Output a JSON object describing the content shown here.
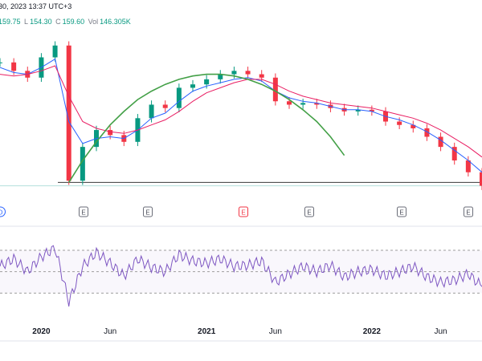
{
  "header": {
    "datetime_text": "30, 2023 13:37 UTC+3",
    "ohlc": [
      {
        "label": "",
        "value": "159.75"
      },
      {
        "label": "L",
        "value": "154.30"
      },
      {
        "label": "C",
        "value": "159.60"
      },
      {
        "label": "Vol",
        "value": "146.305K"
      }
    ]
  },
  "colors": {
    "up": "#089981",
    "down": "#f23645",
    "ma_fast": "#2962ff",
    "ma_slow": "#e91e63",
    "arc": "#43a047",
    "rsi": "#7e57c2",
    "support": "#3a3a3a"
  },
  "events": {
    "markers": [
      "D",
      "E",
      "E",
      "E",
      "E",
      "E",
      "E"
    ],
    "highlighted_index": 3
  },
  "chart_data": [
    {
      "type": "line",
      "name_hint": "price-panel",
      "title": "",
      "x": [
        "2019-10",
        "2019-11",
        "2019-12",
        "2020-01",
        "2020-02",
        "2020-03",
        "2020-04",
        "2020-05",
        "2020-06",
        "2020-07",
        "2020-08",
        "2020-09",
        "2020-10",
        "2020-11",
        "2020-12",
        "2021-01",
        "2021-02",
        "2021-03",
        "2021-04",
        "2021-05",
        "2021-06",
        "2021-07",
        "2021-08",
        "2021-09",
        "2021-10",
        "2021-11",
        "2021-12",
        "2022-01",
        "2022-02",
        "2022-03",
        "2022-04",
        "2022-05",
        "2022-06",
        "2022-07",
        "2022-08",
        "2022-09"
      ],
      "series": [
        {
          "kind": "close",
          "values": [
            195,
            190,
            186,
            198,
            205,
            125,
            145,
            155,
            152,
            148,
            162,
            170,
            168,
            180,
            182,
            185,
            188,
            190,
            188,
            186,
            172,
            170,
            171,
            170,
            168,
            166,
            167,
            166,
            160,
            158,
            156,
            151,
            145,
            137,
            130,
            122
          ]
        },
        {
          "kind": "ma_fast",
          "values": [
            192,
            189,
            188,
            192,
            197,
            160,
            147,
            150,
            151,
            150,
            155,
            162,
            165,
            172,
            178,
            181,
            183,
            185,
            186,
            184,
            178,
            174,
            172,
            171,
            169,
            167,
            167,
            166,
            163,
            161,
            158,
            154,
            149,
            143,
            137,
            130
          ]
        },
        {
          "kind": "ma_slow",
          "values": [
            188,
            187,
            188,
            190,
            193,
            175,
            160,
            156,
            154,
            153,
            155,
            158,
            161,
            166,
            172,
            177,
            180,
            183,
            185,
            185,
            182,
            178,
            175,
            173,
            171,
            170,
            169,
            168,
            166,
            164,
            162,
            159,
            155,
            150,
            145,
            139
          ]
        },
        {
          "kind": "arc_fit",
          "values": [
            null,
            null,
            null,
            null,
            null,
            124,
            137,
            148,
            158,
            166,
            173,
            178,
            182,
            185,
            187,
            188,
            188,
            187,
            185,
            182,
            178,
            173,
            167,
            160,
            151,
            140,
            null,
            null,
            null,
            null,
            null,
            null,
            null,
            null,
            null,
            null
          ]
        }
      ],
      "support_level": 124,
      "ylim": [
        118,
        212
      ],
      "xlabel": "",
      "ylabel": "",
      "grid": false,
      "legend": "none"
    },
    {
      "type": "line",
      "name_hint": "rsi-panel",
      "title": "",
      "x": [
        "2019-10",
        "2019-11",
        "2019-12",
        "2020-01",
        "2020-02",
        "2020-03",
        "2020-04",
        "2020-05",
        "2020-06",
        "2020-07",
        "2020-08",
        "2020-09",
        "2020-10",
        "2020-11",
        "2020-12",
        "2021-01",
        "2021-02",
        "2021-03",
        "2021-04",
        "2021-05",
        "2021-06",
        "2021-07",
        "2021-08",
        "2021-09",
        "2021-10",
        "2021-11",
        "2021-12",
        "2022-01",
        "2022-02",
        "2022-03",
        "2022-04",
        "2022-05",
        "2022-06",
        "2022-07",
        "2022-08",
        "2022-09"
      ],
      "series": [
        {
          "kind": "rsi",
          "values": [
            55,
            62,
            50,
            64,
            72,
            22,
            55,
            68,
            58,
            46,
            62,
            54,
            50,
            66,
            60,
            58,
            62,
            55,
            56,
            60,
            40,
            48,
            55,
            50,
            56,
            45,
            50,
            52,
            46,
            50,
            55,
            45,
            40,
            42,
            48,
            36
          ]
        }
      ],
      "bands": [
        70,
        50,
        30
      ],
      "ylim": [
        10,
        85
      ],
      "tick_labels": [
        "2020",
        "Jun",
        "2021",
        "Jun",
        "2022",
        "Jun"
      ],
      "tick_positions": [
        "2020-01",
        "2020-06",
        "2021-01",
        "2021-06",
        "2022-01",
        "2022-06"
      ],
      "grid": false,
      "legend": "none"
    }
  ]
}
